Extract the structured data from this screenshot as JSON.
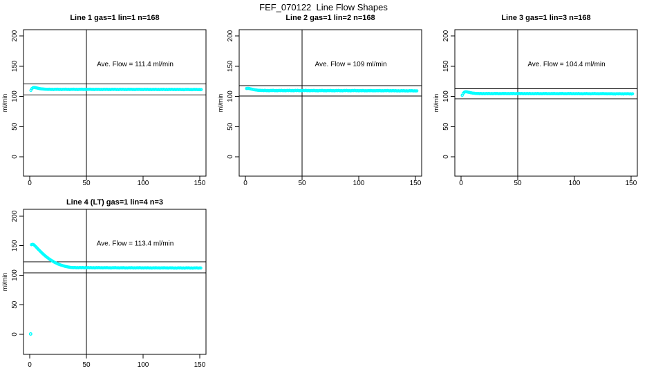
{
  "figure_title": "FEF_070122  Line Flow Shapes",
  "colors": {
    "marker": "#00FFFF",
    "axis": "#000000",
    "background": "#FFFFFF"
  },
  "chart_data": [
    {
      "type": "scatter",
      "title": "Line 1 gas=1 lin=1 n=168",
      "annotation": "Ave. Flow =  111.4  ml/min",
      "ave_flow": 111.4,
      "n": 168,
      "ylabel": "ml/min",
      "xticks": [
        0,
        50,
        100,
        150
      ],
      "yticks": [
        0,
        50,
        100,
        150,
        200
      ],
      "xlim": [
        -5.5,
        155.5
      ],
      "ylim": [
        -32,
        210.3
      ],
      "vline_x": 50,
      "hlines": [
        120.3,
        102.5
      ],
      "annotation_xy": [
        93,
        150
      ],
      "x_start": 1,
      "x_step": 0.9,
      "y": [
        110.0,
        112.8,
        114.2,
        114.6,
        114.5,
        114.2,
        113.8,
        113.4,
        113.0,
        112.7,
        112.5,
        112.3,
        112.1,
        112.0,
        111.9,
        111.8,
        111.8,
        111.5,
        111.9,
        111.6,
        111.4,
        111.7,
        111.3,
        111.6,
        111.8,
        111.5,
        111.9,
        111.6,
        111.4,
        111.7,
        111.3,
        111.6,
        111.8,
        111.5,
        111.9,
        111.6,
        111.4,
        111.7,
        111.3,
        111.6,
        111.8,
        111.5,
        111.9,
        111.6,
        111.4,
        111.7,
        111.3,
        111.6,
        111.8,
        111.5,
        111.9,
        111.6,
        111.4,
        111.7,
        111.3,
        111.6,
        111.8,
        111.5,
        111.9,
        111.6,
        111.4,
        111.7,
        111.3,
        111.6,
        111.7,
        111.4,
        111.8,
        111.5,
        111.3,
        111.6,
        111.2,
        111.5,
        111.7,
        111.4,
        111.8,
        111.5,
        111.3,
        111.6,
        111.2,
        111.5,
        111.7,
        111.4,
        111.8,
        111.5,
        111.3,
        111.6,
        111.2,
        111.5,
        111.7,
        111.4,
        111.8,
        111.5,
        111.3,
        111.6,
        111.2,
        111.5,
        111.7,
        111.4,
        111.8,
        111.5,
        111.3,
        111.6,
        111.2,
        111.5,
        111.7,
        111.4,
        111.8,
        111.5,
        111.3,
        111.6,
        111.2,
        111.5,
        111.6,
        111.3,
        111.7,
        111.4,
        111.2,
        111.5,
        111.1,
        111.4,
        111.6,
        111.3,
        111.7,
        111.4,
        111.2,
        111.5,
        111.1,
        111.4,
        111.6,
        111.3,
        111.7,
        111.4,
        111.2,
        111.5,
        111.1,
        111.4,
        111.6,
        111.3,
        111.7,
        111.4,
        111.2,
        111.5,
        111.1,
        111.4,
        111.5,
        111.2,
        111.6,
        111.3,
        111.1,
        111.4,
        111.0,
        111.3,
        111.5,
        111.2,
        111.6,
        111.3,
        111.1,
        111.4,
        111.0,
        111.3,
        111.5,
        111.2,
        111.6,
        111.3,
        111.1,
        111.4,
        111.0,
        111.3
      ],
      "extra_points": []
    },
    {
      "type": "scatter",
      "title": "Line 2 gas=1 lin=2 n=168",
      "annotation": "Ave. Flow =  109  ml/min",
      "ave_flow": 109,
      "n": 168,
      "ylabel": "ml/min",
      "xticks": [
        0,
        50,
        100,
        150
      ],
      "yticks": [
        0,
        50,
        100,
        150,
        200
      ],
      "xlim": [
        -5.5,
        155.5
      ],
      "ylim": [
        -32,
        210.3
      ],
      "vline_x": 50,
      "hlines": [
        117.7,
        100.3
      ],
      "annotation_xy": [
        93,
        150
      ],
      "x_start": 1,
      "x_step": 0.9,
      "y": [
        113.0,
        113.2,
        113.1,
        112.8,
        112.4,
        112.0,
        111.6,
        111.2,
        110.9,
        110.6,
        110.4,
        110.2,
        110.0,
        109.9,
        109.8,
        109.7,
        109.8,
        109.5,
        109.9,
        109.6,
        109.4,
        109.7,
        109.3,
        109.6,
        109.8,
        109.5,
        109.9,
        109.6,
        109.4,
        109.7,
        109.3,
        109.6,
        109.8,
        109.5,
        109.9,
        109.6,
        109.4,
        109.7,
        109.3,
        109.6,
        109.8,
        109.5,
        109.9,
        109.6,
        109.4,
        109.7,
        109.3,
        109.6,
        109.8,
        109.5,
        109.9,
        109.6,
        109.4,
        109.7,
        109.3,
        109.6,
        109.8,
        109.5,
        109.9,
        109.6,
        109.4,
        109.7,
        109.3,
        109.6,
        109.7,
        109.4,
        109.8,
        109.5,
        109.3,
        109.6,
        109.2,
        109.5,
        109.7,
        109.4,
        109.8,
        109.5,
        109.3,
        109.6,
        109.2,
        109.5,
        109.7,
        109.4,
        109.8,
        109.5,
        109.3,
        109.6,
        109.2,
        109.5,
        109.7,
        109.4,
        109.8,
        109.5,
        109.3,
        109.6,
        109.2,
        109.5,
        109.7,
        109.4,
        109.8,
        109.5,
        109.3,
        109.6,
        109.2,
        109.5,
        109.7,
        109.4,
        109.8,
        109.5,
        109.3,
        109.6,
        109.2,
        109.5,
        109.6,
        109.3,
        109.7,
        109.4,
        109.2,
        109.5,
        109.1,
        109.4,
        109.6,
        109.3,
        109.7,
        109.4,
        109.2,
        109.5,
        109.1,
        109.4,
        109.6,
        109.3,
        109.7,
        109.4,
        109.2,
        109.5,
        109.1,
        109.4,
        109.6,
        109.3,
        109.7,
        109.4,
        109.2,
        109.5,
        109.1,
        109.4,
        109.4,
        109.1,
        109.5,
        109.2,
        109.0,
        109.3,
        108.9,
        109.2,
        109.4,
        109.1,
        109.5,
        109.2,
        109.0,
        109.3,
        108.9,
        109.2,
        109.4,
        109.1,
        109.5,
        109.2,
        109.0,
        109.3,
        108.9,
        109.2
      ],
      "extra_points": []
    },
    {
      "type": "scatter",
      "title": "Line 3 gas=1 lin=3 n=168",
      "annotation": "Ave. Flow =  104.4  ml/min",
      "ave_flow": 104.4,
      "n": 168,
      "ylabel": "ml/min",
      "xticks": [
        0,
        50,
        100,
        150
      ],
      "yticks": [
        0,
        50,
        100,
        150,
        200
      ],
      "xlim": [
        -5.5,
        155.5
      ],
      "ylim": [
        -32,
        210.3
      ],
      "vline_x": 50,
      "hlines": [
        112.8,
        96.0
      ],
      "annotation_xy": [
        93,
        150
      ],
      "x_start": 1,
      "x_step": 0.9,
      "y": [
        101.8,
        105.0,
        106.8,
        107.5,
        107.6,
        107.3,
        106.9,
        106.5,
        106.1,
        105.8,
        105.5,
        105.3,
        105.1,
        104.9,
        104.8,
        104.7,
        104.8,
        104.5,
        104.9,
        104.6,
        104.4,
        104.7,
        104.3,
        104.6,
        104.8,
        104.5,
        104.9,
        104.6,
        104.4,
        104.7,
        104.3,
        104.6,
        104.8,
        104.5,
        104.9,
        104.6,
        104.4,
        104.7,
        104.3,
        104.6,
        104.8,
        104.5,
        104.9,
        104.6,
        104.4,
        104.7,
        104.3,
        104.6,
        104.8,
        104.5,
        104.9,
        104.6,
        104.4,
        104.7,
        104.3,
        104.6,
        104.8,
        104.5,
        104.9,
        104.6,
        104.4,
        104.7,
        104.3,
        104.6,
        104.7,
        104.4,
        104.8,
        104.5,
        104.3,
        104.6,
        104.2,
        104.5,
        104.7,
        104.4,
        104.8,
        104.5,
        104.3,
        104.6,
        104.2,
        104.5,
        104.7,
        104.4,
        104.8,
        104.5,
        104.3,
        104.6,
        104.2,
        104.5,
        104.7,
        104.4,
        104.8,
        104.5,
        104.3,
        104.6,
        104.2,
        104.5,
        104.7,
        104.4,
        104.8,
        104.5,
        104.3,
        104.6,
        104.2,
        104.5,
        104.7,
        104.4,
        104.8,
        104.5,
        104.3,
        104.6,
        104.2,
        104.5,
        104.6,
        104.3,
        104.7,
        104.4,
        104.2,
        104.5,
        104.1,
        104.4,
        104.6,
        104.3,
        104.7,
        104.4,
        104.2,
        104.5,
        104.1,
        104.4,
        104.6,
        104.3,
        104.7,
        104.4,
        104.2,
        104.5,
        104.1,
        104.4,
        104.6,
        104.3,
        104.7,
        104.4,
        104.2,
        104.5,
        104.1,
        104.4,
        104.4,
        104.1,
        104.5,
        104.2,
        104.0,
        104.3,
        103.9,
        104.2,
        104.4,
        104.1,
        104.5,
        104.2,
        104.0,
        104.3,
        103.9,
        104.2,
        104.4,
        104.1,
        104.5,
        104.2,
        104.0,
        104.3,
        103.9,
        104.2
      ],
      "extra_points": []
    },
    {
      "type": "scatter",
      "title": "Line 4 (LT) gas=1 lin=4 n=3",
      "annotation": "Ave. Flow =  113.4  ml/min",
      "ave_flow": 113.4,
      "n": 3,
      "ylabel": "ml/min",
      "xticks": [
        0,
        50,
        100,
        150
      ],
      "yticks": [
        0,
        50,
        100,
        150,
        200
      ],
      "xlim": [
        -5.5,
        155.5
      ],
      "ylim": [
        -34,
        211.7
      ],
      "vline_x": 50,
      "hlines": [
        122.5,
        104.3
      ],
      "annotation_xy": [
        93,
        150
      ],
      "x_start": 1.5,
      "x_step": 0.9,
      "y": [
        151.8,
        152.3,
        152.0,
        150.6,
        148.9,
        147.1,
        145.3,
        143.5,
        141.7,
        140.0,
        138.3,
        136.7,
        135.1,
        133.6,
        132.1,
        130.7,
        129.4,
        128.1,
        126.9,
        125.7,
        124.6,
        123.6,
        122.6,
        121.7,
        120.8,
        120.0,
        119.2,
        118.5,
        117.8,
        117.2,
        116.6,
        116.1,
        115.6,
        115.1,
        114.7,
        114.3,
        114.0,
        113.7,
        113.4,
        113.2,
        113.1,
        112.8,
        113.2,
        112.9,
        112.7,
        113.0,
        112.6,
        112.9,
        113.0,
        112.7,
        113.1,
        112.8,
        112.6,
        112.9,
        112.5,
        112.8,
        112.9,
        112.6,
        113.0,
        112.7,
        112.5,
        112.8,
        112.4,
        112.7,
        112.9,
        112.6,
        113.0,
        112.7,
        112.5,
        112.8,
        112.4,
        112.7,
        112.8,
        112.5,
        112.9,
        112.6,
        112.4,
        112.7,
        112.3,
        112.6,
        112.8,
        112.5,
        112.9,
        112.6,
        112.4,
        112.7,
        112.3,
        112.6,
        112.7,
        112.4,
        112.8,
        112.5,
        112.3,
        112.6,
        112.2,
        112.5,
        112.7,
        112.4,
        112.8,
        112.5,
        112.3,
        112.6,
        112.2,
        112.5,
        112.7,
        112.4,
        112.8,
        112.5,
        112.3,
        112.6,
        112.2,
        112.5,
        112.6,
        112.3,
        112.7,
        112.4,
        112.2,
        112.5,
        112.1,
        112.4,
        112.6,
        112.3,
        112.7,
        112.4,
        112.2,
        112.5,
        112.1,
        112.4,
        112.6,
        112.3,
        112.7,
        112.4,
        112.2,
        112.5,
        112.1,
        112.4,
        112.5,
        112.2,
        112.6,
        112.3,
        112.1,
        112.4,
        112.0,
        112.3,
        112.5,
        112.2,
        112.6,
        112.3,
        112.1,
        112.4,
        112.0,
        112.3,
        112.5,
        112.2,
        112.6,
        112.3,
        112.1,
        112.4,
        112.0,
        112.3,
        112.4,
        112.2,
        112.5,
        112.3,
        112.1,
        112.4,
        112.2
      ],
      "extra_points": [
        [
          0.8,
          0.5
        ]
      ]
    }
  ]
}
